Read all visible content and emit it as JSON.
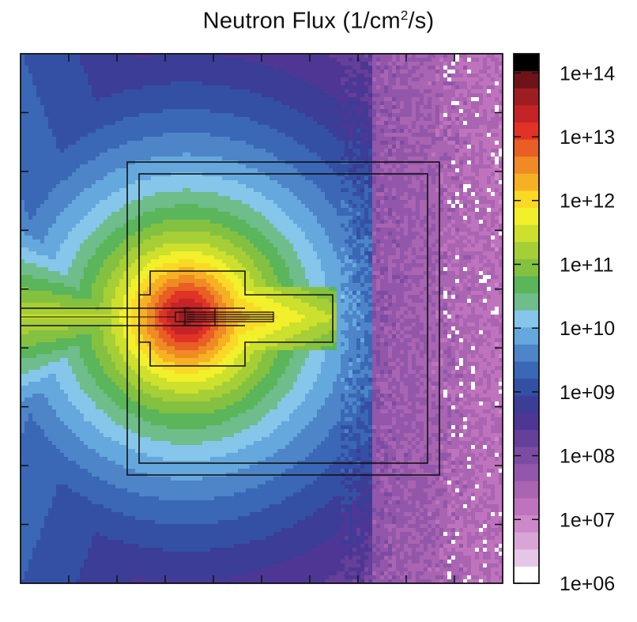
{
  "chart_data": {
    "type": "heatmap",
    "title": "Neutron Flux (1/cm",
    "title_sup": "2",
    "title_suffix": "/s)",
    "colorbar": {
      "scale": "log",
      "range": [
        1000000.0,
        200000000000000.0
      ],
      "tick_labels": [
        "1e+06",
        "1e+07",
        "1e+08",
        "1e+09",
        "1e+10",
        "1e+11",
        "1e+12",
        "1e+13",
        "1e+14"
      ],
      "tick_values": [
        1000000.0,
        10000000.0,
        100000000.0,
        1000000000.0,
        10000000000.0,
        100000000000.0,
        1000000000000.0,
        10000000000000.0,
        100000000000000.0
      ],
      "colors": [
        "#ffffff",
        "#e6c6e6",
        "#d9a5d6",
        "#cc89c9",
        "#c073bd",
        "#a964b2",
        "#9257aa",
        "#7c4ca3",
        "#653f99",
        "#4e3794",
        "#3b3d97",
        "#3450a4",
        "#3a67b6",
        "#4d85c8",
        "#65a8de",
        "#86c6ea",
        "#6fbd8a",
        "#5ab55b",
        "#84c140",
        "#a6ce36",
        "#cce02d",
        "#f2ef2b",
        "#f9d926",
        "#f6b024",
        "#ef8a24",
        "#e85e25",
        "#e03325",
        "#c42428",
        "#9e1d22",
        "#6e1419",
        "#000000"
      ]
    },
    "field_levels": {
      "far_right_exp": 7.2,
      "center_zone_exp": 8.8,
      "source_exp": 13.6,
      "beam_line_exp": 11.2,
      "left_edge_exp": 10.8
    },
    "x_ticks": 10,
    "y_ticks": 9,
    "x_tick_labels": [],
    "y_tick_labels": [],
    "grid": false
  }
}
